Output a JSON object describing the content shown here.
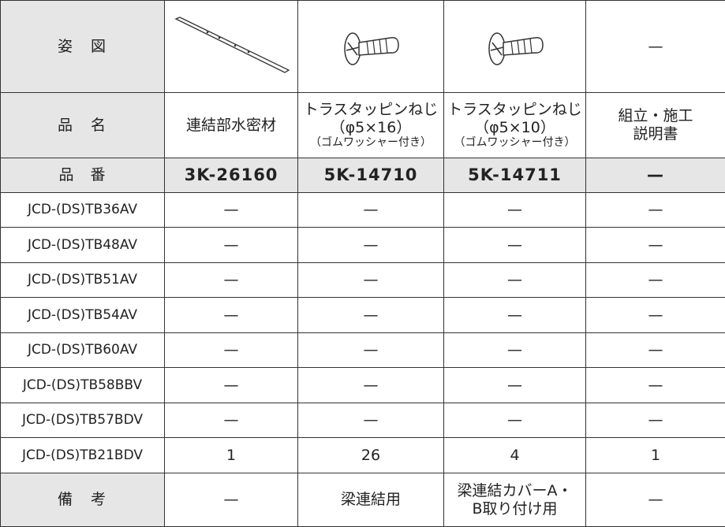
{
  "figure_row": {
    "label": "姿　図",
    "empty": "—"
  },
  "name_row": {
    "label": "品　名",
    "cells": [
      [
        "連結部水密材"
      ],
      [
        "トラスタッピンねじ",
        "（φ5×16）",
        "（ゴムワッシャー付き）"
      ],
      [
        "トラスタッピンねじ",
        "（φ5×10）",
        "（ゴムワッシャー付き）"
      ],
      [
        "組立・施工",
        "説明書"
      ]
    ]
  },
  "part_row": {
    "label": "品　番",
    "cells": [
      "3K-26160",
      "5K-14710",
      "5K-14711",
      "—"
    ]
  },
  "models": [
    {
      "name": "JCD-(DS)TB36AV",
      "cells": [
        "—",
        "—",
        "—",
        "—"
      ]
    },
    {
      "name": "JCD-(DS)TB48AV",
      "cells": [
        "—",
        "—",
        "—",
        "—"
      ]
    },
    {
      "name": "JCD-(DS)TB51AV",
      "cells": [
        "—",
        "—",
        "—",
        "—"
      ]
    },
    {
      "name": "JCD-(DS)TB54AV",
      "cells": [
        "—",
        "—",
        "—",
        "—"
      ]
    },
    {
      "name": "JCD-(DS)TB60AV",
      "cells": [
        "—",
        "—",
        "—",
        "—"
      ]
    },
    {
      "name": "JCD-(DS)TB58BBV",
      "cells": [
        "—",
        "—",
        "—",
        "—"
      ]
    },
    {
      "name": "JCD-(DS)TB57BDV",
      "cells": [
        "—",
        "—",
        "—",
        "—"
      ]
    },
    {
      "name": "JCD-(DS)TB21BDV",
      "cells": [
        "1",
        "26",
        "4",
        "1"
      ]
    }
  ],
  "remarks_row": {
    "label": "備　考",
    "cells": [
      [
        "—"
      ],
      [
        "梁連結用"
      ],
      [
        "梁連結カバーA・",
        "B取り付け用"
      ],
      [
        "—"
      ]
    ]
  }
}
